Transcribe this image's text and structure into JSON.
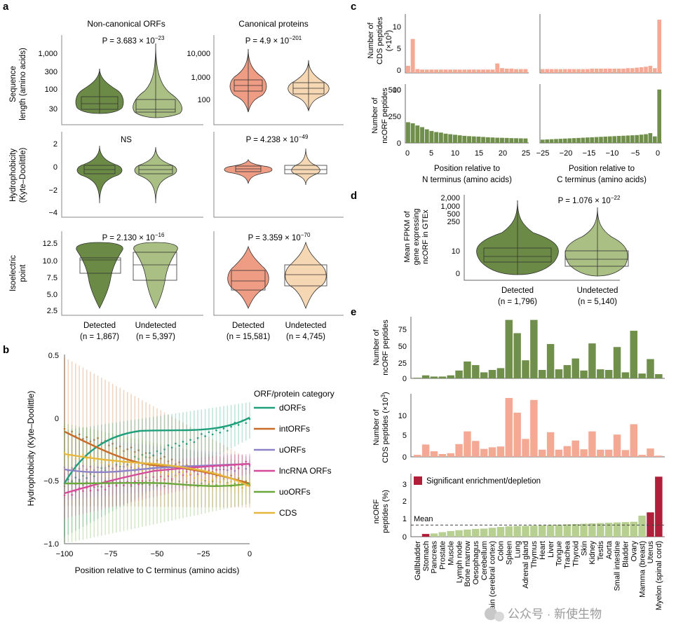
{
  "colors": {
    "dark_green": "#6b8a45",
    "light_green": "#a9bf84",
    "salmon": "#ef9c84",
    "peach": "#f6d7b4",
    "bar_green": "#6f8f4b",
    "bar_pink": "#f3a993",
    "bar_light": "#b7cf91",
    "sig": "#b01e3a",
    "dORFs": "#1f9f7c",
    "intORFs": "#c96b28",
    "uORFs": "#8c83c8",
    "lncRNA": "#d64b9a",
    "uoORFs": "#6aa83d",
    "CDS": "#e6b73d"
  },
  "panel_a": {
    "label": "a",
    "col_titles": [
      "Non-canonical ORFs",
      "Canonical proteins"
    ],
    "row_ylabels": [
      [
        "Sequence",
        "length (amino acids)"
      ],
      [
        "Hydrophobicity",
        "(Kyte–Doolittle)"
      ],
      [
        "Isoelectric",
        "point"
      ]
    ],
    "yticks_len_left": [
      "1,000",
      "300",
      "100",
      "30"
    ],
    "yticks_len_right": [
      "10,000",
      "1,000",
      "100"
    ],
    "yticks_hydro": [
      "2",
      "0",
      "−2",
      "−4"
    ],
    "yticks_pi": [
      "12.5",
      "10.0",
      "7.5",
      "5.0",
      "2.5"
    ],
    "pvalues": {
      "len_left": {
        "pre": "P = 3.683 × 10",
        "exp": "−23"
      },
      "len_right": {
        "pre": "P = 4.9 × 10",
        "exp": "−201"
      },
      "hydro_left": {
        "text": "NS"
      },
      "hydro_right": {
        "pre": "P = 4.238 × 10",
        "exp": "−49"
      },
      "pi_left": {
        "pre": "P = 2.130 × 10",
        "exp": "−16"
      },
      "pi_right": {
        "pre": "P = 3.359 × 10",
        "exp": "−70"
      }
    },
    "xlabels_left": [
      {
        "name": "Detected",
        "n": "(n = 1,867)"
      },
      {
        "name": "Undetected",
        "n": "(n = 5,397)"
      }
    ],
    "xlabels_right": [
      {
        "name": "Detected",
        "n": "(n = 15,581)"
      },
      {
        "name": "Undetected",
        "n": "(n = 4,745)"
      }
    ]
  },
  "panel_b": {
    "label": "b",
    "ylabel": "Hydrophobicity (Kyte–Doolittle)",
    "xlabel": "Position relative to C terminus (amino acids)",
    "yticks": [
      "0.5",
      "0",
      "−0.5",
      "−1.0"
    ],
    "xticks": [
      "−100",
      "−75",
      "−50",
      "−25",
      "0"
    ],
    "legend_title": "ORF/protein category",
    "legend": [
      "dORFs",
      "intORFs",
      "uORFs",
      "lncRNA ORFs",
      "uoORFs",
      "CDS"
    ]
  },
  "panel_c": {
    "label": "c",
    "ylabel_top": [
      "Number of",
      "CDS peptides",
      "(×10",
      "3",
      ")"
    ],
    "ylabel_bot": [
      "Number of",
      "ncORF peptides"
    ],
    "yticks_top": [
      "10",
      "5",
      "0"
    ],
    "yticks_bot": [
      "500",
      "250",
      "0"
    ],
    "xticks_left": [
      "0",
      "5",
      "10",
      "15",
      "20",
      "25"
    ],
    "xticks_right": [
      "−25",
      "−20",
      "−15",
      "−10",
      "−5",
      "0"
    ],
    "xlabel_left": [
      "Position relative to",
      "N terminus (amino acids)"
    ],
    "xlabel_right": [
      "Position relative to",
      "C terminus (amino acids)"
    ],
    "chart_data": {
      "type": "bar",
      "cds_n_terminus_x1000": [
        1.5,
        7.2,
        0.8,
        0.7,
        0.7,
        0.7,
        0.7,
        0.7,
        0.7,
        0.7,
        0.7,
        0.7,
        0.7,
        0.7,
        0.7,
        0.7,
        0.7,
        0.7,
        0.7,
        2.0,
        1.0,
        0.9,
        0.9,
        0.8,
        0.8,
        0.8
      ],
      "cds_c_terminus_x1000": [
        0.8,
        0.8,
        0.8,
        0.8,
        0.8,
        0.8,
        0.8,
        0.8,
        0.8,
        0.8,
        0.8,
        0.9,
        0.9,
        0.9,
        0.9,
        0.9,
        0.9,
        0.9,
        0.9,
        1.0,
        1.0,
        1.1,
        1.2,
        1.3,
        1.5,
        1.0,
        11.3
      ],
      "nc_n_terminus": [
        190,
        180,
        160,
        145,
        125,
        110,
        100,
        95,
        85,
        80,
        75,
        70,
        65,
        62,
        60,
        58,
        55,
        52,
        50,
        48,
        47,
        46,
        44,
        43,
        42,
        41
      ],
      "nc_c_terminus": [
        30,
        32,
        34,
        36,
        38,
        40,
        42,
        44,
        46,
        48,
        50,
        52,
        54,
        56,
        58,
        60,
        62,
        64,
        66,
        68,
        70,
        72,
        76,
        80,
        90,
        60,
        490
      ]
    }
  },
  "panel_d": {
    "label": "d",
    "ylabel": [
      "Mean FPKM of",
      "gene expressing",
      "ncORF in GTEx"
    ],
    "yticks": [
      "2,000",
      "1,000",
      "500",
      "250",
      "10",
      "0"
    ],
    "pvalue": {
      "pre": "P = 1.076 × 10",
      "exp": "−22"
    },
    "xlabels": [
      {
        "name": "Detected",
        "n": "(n = 1,796)"
      },
      {
        "name": "Undetected",
        "n": "(n = 5,140)"
      }
    ]
  },
  "panel_e": {
    "label": "e",
    "ylabel_top": [
      "Number of",
      "ncORF peptides"
    ],
    "ylabel_mid": [
      "Number of",
      "CDS peptides (×10",
      "3",
      ")"
    ],
    "ylabel_bot": [
      "ncORF",
      "peptides (%)"
    ],
    "yticks_top": [
      "75",
      "50",
      "25",
      "0"
    ],
    "yticks_mid": [
      "10",
      "5",
      "0"
    ],
    "yticks_bot": [
      "3",
      "2",
      "1",
      "0"
    ],
    "legend_sig": "Significant enrichment/depletion",
    "mean_label": "Mean",
    "tissues": [
      "Gallbladder",
      "Stomach",
      "Pancreas",
      "Prostate",
      "Muscle",
      "Lymph node",
      "Bone marrow",
      "Oesophagus",
      "Cerebellum",
      "Brain (cerebral cortex)",
      "Colon",
      "Spleen",
      "Lung",
      "Adrenal gland",
      "Thymus",
      "Heart",
      "Liver",
      "Tongue",
      "Trachea",
      "Thyroid",
      "Skin",
      "Kidney",
      "Testis",
      "Aorta",
      "Small intestine",
      "Bladder",
      "Ovary",
      "Mamma (breast)",
      "Uterus",
      "Myelon (spinal cord)"
    ],
    "chart_data": {
      "type": "bar",
      "ncorf_peptides": [
        1,
        5,
        3,
        3,
        5,
        13,
        28,
        22,
        10,
        14,
        17,
        97,
        75,
        30,
        97,
        14,
        57,
        15,
        22,
        33,
        13,
        58,
        15,
        14,
        52,
        10,
        79,
        8,
        32,
        7
      ],
      "cds_peptides_x1000": [
        0.5,
        3.1,
        1.4,
        0.7,
        0.9,
        3.2,
        6.4,
        4.0,
        2.0,
        2.4,
        2.6,
        14.8,
        11.1,
        4.5,
        14.3,
        1.8,
        6.2,
        1.8,
        2.7,
        4.1,
        1.9,
        6.4,
        1.8,
        1.8,
        5.6,
        1.7,
        8.2,
        0.5,
        2.1,
        0.3
      ],
      "ncorf_percent": [
        0.0,
        0.17,
        0.2,
        0.28,
        0.35,
        0.4,
        0.44,
        0.48,
        0.5,
        0.55,
        0.6,
        0.64,
        0.66,
        0.67,
        0.68,
        0.7,
        0.72,
        0.74,
        0.76,
        0.78,
        0.8,
        0.82,
        0.84,
        0.86,
        0.88,
        0.9,
        0.92,
        1.3,
        1.5,
        3.7
      ],
      "significant": [
        true,
        true,
        false,
        false,
        false,
        false,
        false,
        false,
        false,
        false,
        false,
        false,
        false,
        false,
        false,
        false,
        false,
        false,
        false,
        false,
        false,
        false,
        false,
        false,
        false,
        false,
        false,
        false,
        true,
        true
      ],
      "mean_percent": 0.72
    }
  },
  "watermark": "公众号 · 新使生物"
}
